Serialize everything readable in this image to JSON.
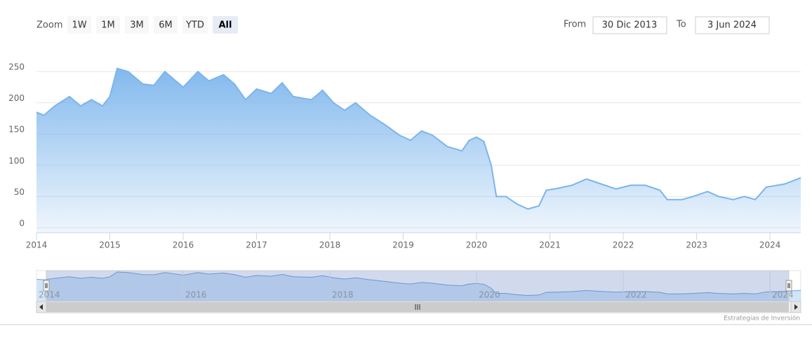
{
  "chart_data": {
    "type": "area",
    "x": [
      2014.0,
      2014.1,
      2014.25,
      2014.45,
      2014.6,
      2014.75,
      2014.9,
      2015.0,
      2015.1,
      2015.25,
      2015.45,
      2015.6,
      2015.75,
      2015.9,
      2016.0,
      2016.2,
      2016.35,
      2016.55,
      2016.7,
      2016.85,
      2017.0,
      2017.2,
      2017.35,
      2017.5,
      2017.75,
      2017.9,
      2018.05,
      2018.2,
      2018.35,
      2018.55,
      2018.75,
      2018.95,
      2019.1,
      2019.25,
      2019.4,
      2019.6,
      2019.8,
      2019.9,
      2020.0,
      2020.1,
      2020.2,
      2020.27,
      2020.4,
      2020.55,
      2020.7,
      2020.85,
      2020.95,
      2021.1,
      2021.3,
      2021.5,
      2021.7,
      2021.9,
      2022.1,
      2022.3,
      2022.5,
      2022.6,
      2022.8,
      2022.95,
      2023.15,
      2023.3,
      2023.5,
      2023.65,
      2023.8,
      2023.95,
      2024.2,
      2024.42
    ],
    "values": [
      185,
      180,
      195,
      210,
      195,
      205,
      195,
      210,
      255,
      250,
      230,
      228,
      250,
      235,
      225,
      250,
      235,
      245,
      230,
      205,
      222,
      215,
      232,
      210,
      205,
      220,
      200,
      188,
      200,
      180,
      165,
      148,
      140,
      155,
      148,
      130,
      123,
      140,
      145,
      138,
      100,
      50,
      50,
      38,
      30,
      35,
      60,
      63,
      68,
      78,
      70,
      62,
      68,
      68,
      60,
      45,
      45,
      50,
      58,
      50,
      45,
      50,
      45,
      65,
      70,
      80
    ],
    "color": "#7cb5ec",
    "xlim": [
      2014.0,
      2024.42
    ],
    "xticks": [
      2014,
      2015,
      2016,
      2017,
      2018,
      2019,
      2020,
      2021,
      2022,
      2023,
      2024
    ],
    "ylim": [
      -8,
      295
    ],
    "yticks": [
      0,
      50,
      100,
      150,
      200,
      250
    ],
    "grid": true,
    "navigator_ticks": [
      2014,
      2016,
      2018,
      2020,
      2022,
      2024
    ]
  },
  "range_selector": {
    "label": "Zoom",
    "buttons": [
      "1W",
      "1M",
      "3M",
      "6M",
      "YTD",
      "All"
    ],
    "selected_index": 5,
    "from_label": "From",
    "from": "30 Dic 2013",
    "to_label": "To",
    "to": "3 Jun 2024"
  },
  "credits": "Estrategias de Inversión"
}
